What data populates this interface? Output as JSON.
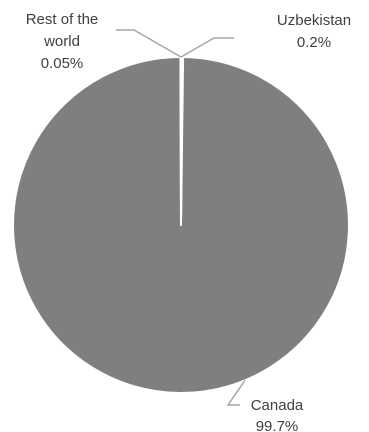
{
  "chart_data": {
    "type": "pie",
    "title": "",
    "slices": [
      {
        "name": "Canada",
        "value": 99.7,
        "value_label": "99.7%"
      },
      {
        "name": "Uzbekistan",
        "value": 0.2,
        "value_label": "0.2%"
      },
      {
        "name": "Rest of the world",
        "name_lines": [
          "Rest of the",
          "world"
        ],
        "value": 0.05,
        "value_label": "0.05%"
      }
    ],
    "colors": {
      "fill": "#7f7f7f",
      "edge": "#ffffff",
      "leader": "#a6a6a6",
      "text": "#404040"
    },
    "legend": "none"
  }
}
